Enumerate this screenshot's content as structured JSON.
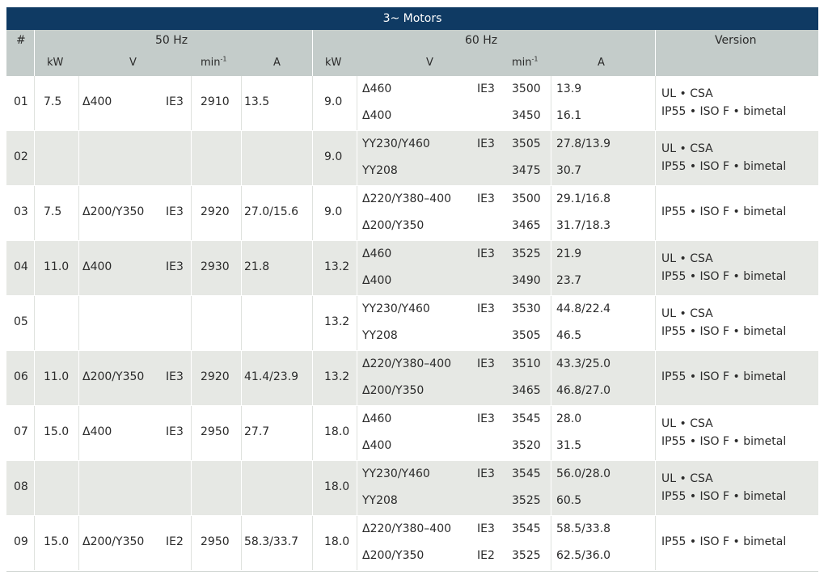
{
  "title": "3~ Motors",
  "headers": {
    "num": "#",
    "hz50": "50 Hz",
    "hz60": "60 Hz",
    "version": "Version",
    "kw": "kW",
    "v": "V",
    "min": "min",
    "min_sup": "-1",
    "a": "A"
  },
  "rows": [
    {
      "num": "01",
      "kw50": "7.5",
      "v50": "Δ400",
      "ie50": "IE3",
      "min50": "2910",
      "a50": "13.5",
      "kw60": "9.0",
      "v60a": "Δ460",
      "ie60a": "IE3",
      "min60a": "3500",
      "a60a": "13.9",
      "v60b": "Δ400",
      "ie60b": "",
      "min60b": "3450",
      "a60b": "16.1",
      "ver1": "UL • CSA",
      "ver2": "IP55 • ISO F • bimetal"
    },
    {
      "num": "02",
      "kw50": "",
      "v50": "",
      "ie50": "",
      "min50": "",
      "a50": "",
      "kw60": "9.0",
      "v60a": "YY230/Y460",
      "ie60a": "IE3",
      "min60a": "3505",
      "a60a": "27.8/13.9",
      "v60b": "YY208",
      "ie60b": "",
      "min60b": "3475",
      "a60b": "30.7",
      "ver1": "UL • CSA",
      "ver2": "IP55 • ISO F • bimetal"
    },
    {
      "num": "03",
      "kw50": "7.5",
      "v50": "Δ200/Y350",
      "ie50": "IE3",
      "min50": "2920",
      "a50": "27.0/15.6",
      "kw60": "9.0",
      "v60a": "Δ220/Y380–400",
      "ie60a": "IE3",
      "min60a": "3500",
      "a60a": "29.1/16.8",
      "v60b": "Δ200/Y350",
      "ie60b": "",
      "min60b": "3465",
      "a60b": "31.7/18.3",
      "ver1": "",
      "ver2": "IP55 • ISO F • bimetal"
    },
    {
      "num": "04",
      "kw50": "11.0",
      "v50": "Δ400",
      "ie50": "IE3",
      "min50": "2930",
      "a50": "21.8",
      "kw60": "13.2",
      "v60a": "Δ460",
      "ie60a": "IE3",
      "min60a": "3525",
      "a60a": "21.9",
      "v60b": "Δ400",
      "ie60b": "",
      "min60b": "3490",
      "a60b": "23.7",
      "ver1": "UL • CSA",
      "ver2": "IP55 • ISO F • bimetal"
    },
    {
      "num": "05",
      "kw50": "",
      "v50": "",
      "ie50": "",
      "min50": "",
      "a50": "",
      "kw60": "13.2",
      "v60a": "YY230/Y460",
      "ie60a": "IE3",
      "min60a": "3530",
      "a60a": "44.8/22.4",
      "v60b": "YY208",
      "ie60b": "",
      "min60b": "3505",
      "a60b": "46.5",
      "ver1": "UL • CSA",
      "ver2": "IP55 • ISO F • bimetal"
    },
    {
      "num": "06",
      "kw50": "11.0",
      "v50": "Δ200/Y350",
      "ie50": "IE3",
      "min50": "2920",
      "a50": "41.4/23.9",
      "kw60": "13.2",
      "v60a": "Δ220/Y380–400",
      "ie60a": "IE3",
      "min60a": "3510",
      "a60a": "43.3/25.0",
      "v60b": "Δ200/Y350",
      "ie60b": "",
      "min60b": "3465",
      "a60b": "46.8/27.0",
      "ver1": "",
      "ver2": "IP55 • ISO F • bimetal"
    },
    {
      "num": "07",
      "kw50": "15.0",
      "v50": "Δ400",
      "ie50": "IE3",
      "min50": "2950",
      "a50": "27.7",
      "kw60": "18.0",
      "v60a": "Δ460",
      "ie60a": "IE3",
      "min60a": "3545",
      "a60a": "28.0",
      "v60b": "Δ400",
      "ie60b": "",
      "min60b": "3520",
      "a60b": "31.5",
      "ver1": "UL • CSA",
      "ver2": "IP55 • ISO F • bimetal"
    },
    {
      "num": "08",
      "kw50": "",
      "v50": "",
      "ie50": "",
      "min50": "",
      "a50": "",
      "kw60": "18.0",
      "v60a": "YY230/Y460",
      "ie60a": "IE3",
      "min60a": "3545",
      "a60a": "56.0/28.0",
      "v60b": "YY208",
      "ie60b": "",
      "min60b": "3525",
      "a60b": "60.5",
      "ver1": "UL • CSA",
      "ver2": "IP55 • ISO F • bimetal"
    },
    {
      "num": "09",
      "kw50": "15.0",
      "v50": "Δ200/Y350",
      "ie50": "IE2",
      "min50": "2950",
      "a50": "58.3/33.7",
      "kw60": "18.0",
      "v60a": "Δ220/Y380–400",
      "ie60a": "IE3",
      "min60a": "3545",
      "a60a": "58.5/33.8",
      "v60b": "Δ200/Y350",
      "ie60b": "IE2",
      "min60b": "3525",
      "a60b": "62.5/36.0",
      "ver1": "",
      "ver2": "IP55 • ISO F • bimetal"
    }
  ],
  "colors": {
    "title_bg": "#0f3a63",
    "header_bg": "#c4ccca",
    "shade_bg": "#e6e8e4"
  }
}
